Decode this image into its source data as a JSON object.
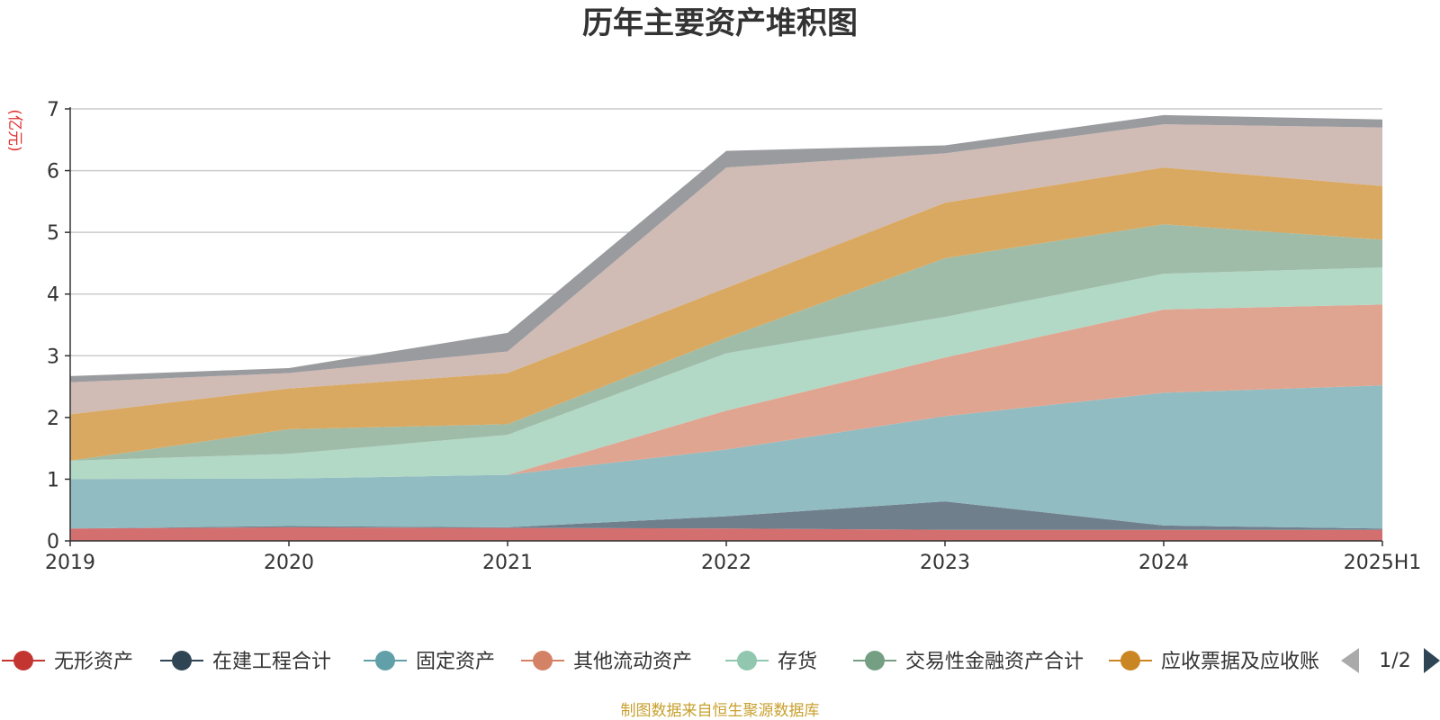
{
  "chart_data": {
    "type": "area",
    "stacked": true,
    "title": "历年主要资产堆积图",
    "ylabel": "(亿元)",
    "x": [
      "2019",
      "2020",
      "2021",
      "2022",
      "2023",
      "2024",
      "2025H1"
    ],
    "ylim": [
      0,
      7
    ],
    "yticks": [
      0,
      1,
      2,
      3,
      4,
      5,
      6,
      7
    ],
    "grid": true,
    "legend_position": "bottom",
    "series": [
      {
        "name": "无形资产",
        "color": "#c23531",
        "area_color": "#d46f6f",
        "values": [
          0.2,
          0.22,
          0.21,
          0.2,
          0.18,
          0.18,
          0.18
        ]
      },
      {
        "name": "在建工程合计",
        "color": "#2f4554",
        "area_color": "#6f7f8c",
        "values": [
          0.0,
          0.02,
          0.01,
          0.2,
          0.46,
          0.07,
          0.02
        ]
      },
      {
        "name": "固定资产",
        "color": "#61a0a8",
        "area_color": "#91bcc2",
        "values": [
          0.8,
          0.77,
          0.85,
          1.08,
          1.38,
          2.15,
          2.32
        ]
      },
      {
        "name": "其他流动资产",
        "color": "#d48265",
        "area_color": "#e0a591",
        "values": [
          0.0,
          0.0,
          0.0,
          0.63,
          0.95,
          1.35,
          1.31
        ]
      },
      {
        "name": "存货",
        "color": "#91c7ae",
        "area_color": "#b2d8c6",
        "values": [
          0.3,
          0.4,
          0.65,
          0.93,
          0.66,
          0.58,
          0.6
        ]
      },
      {
        "name": "交易性金融资产合计",
        "color": "#749f83",
        "area_color": "#9fbca8",
        "values": [
          0.0,
          0.4,
          0.17,
          0.25,
          0.95,
          0.8,
          0.45
        ]
      },
      {
        "name": "应收票据及应收账",
        "color": "#ca8622",
        "area_color": "#d9a961",
        "values": [
          0.75,
          0.66,
          0.83,
          0.81,
          0.9,
          0.92,
          0.87
        ]
      },
      {
        "name": "",
        "color": "#bda29a",
        "area_color": "#d0bbb5",
        "values": [
          0.52,
          0.25,
          0.35,
          1.95,
          0.8,
          0.7,
          0.95
        ]
      },
      {
        "name": "",
        "color": "#6e7074",
        "area_color": "#9a9b9e",
        "values": [
          0.1,
          0.08,
          0.3,
          0.27,
          0.13,
          0.15,
          0.13
        ]
      }
    ]
  },
  "legend": {
    "page_label": "1/2",
    "visible_count": 7
  },
  "source_text": "制图数据来自恒生聚源数据库"
}
